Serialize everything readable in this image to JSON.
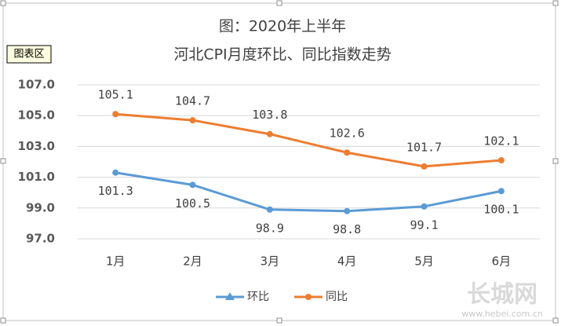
{
  "chart_data": {
    "type": "line",
    "title": "图：2020年上半年",
    "subtitle": "河北CPI月度环比、同比指数走势",
    "chart_area_label": "图表区",
    "categories": [
      "1月",
      "2月",
      "3月",
      "4月",
      "5月",
      "6月"
    ],
    "series": [
      {
        "name": "环比",
        "color": "#5b9bd5",
        "values": [
          101.3,
          100.5,
          98.9,
          98.8,
          99.1,
          100.1
        ]
      },
      {
        "name": "同比",
        "color": "#ed7d31",
        "values": [
          105.1,
          104.7,
          103.8,
          102.6,
          101.7,
          102.1
        ]
      }
    ],
    "ylim": [
      97,
      107
    ],
    "yticks": [
      {
        "value": 97,
        "label": "97.0"
      },
      {
        "value": 99,
        "label": "99.0"
      },
      {
        "value": 101,
        "label": "101.0"
      },
      {
        "value": 103,
        "label": "103.0"
      },
      {
        "value": 105,
        "label": "105.0"
      },
      {
        "value": 107,
        "label": "107.0"
      }
    ],
    "grid": true,
    "legend": "bottom",
    "watermark": {
      "logo": "长城网",
      "url": "www.hebei.com.cn"
    }
  }
}
